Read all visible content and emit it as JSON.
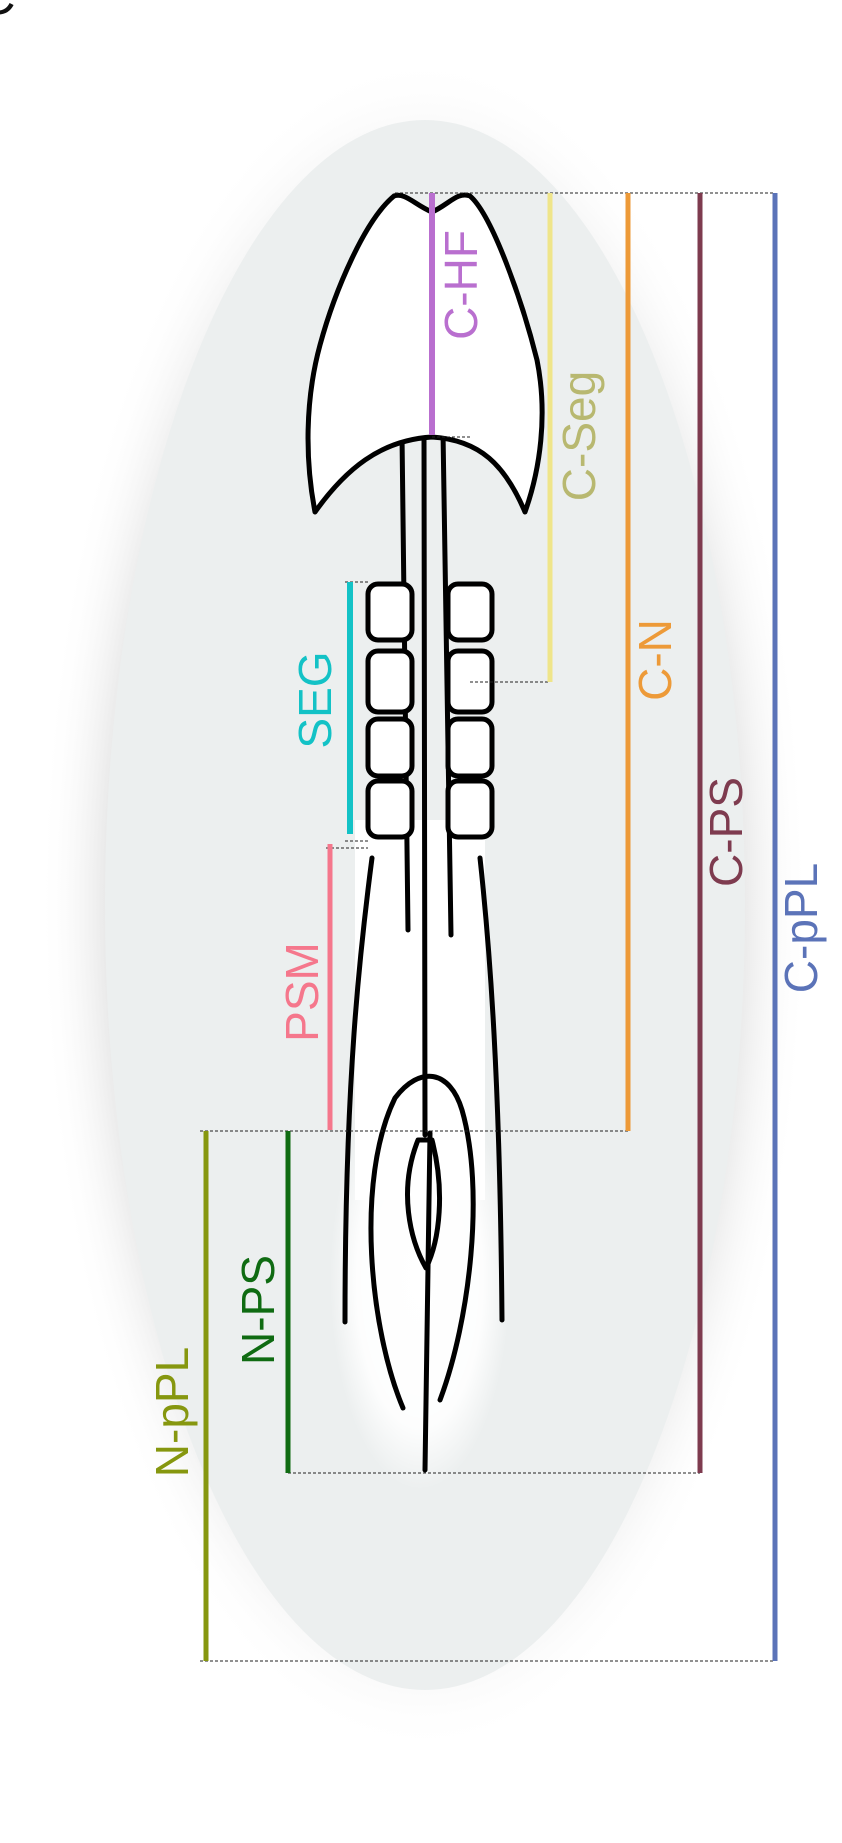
{
  "figure": {
    "corner_glyph": "C",
    "markers": [
      {
        "id": "c-hf",
        "label": "C-HF",
        "color": "#b96fcf"
      },
      {
        "id": "c-seg",
        "label": "C-Seg",
        "color": "#b8b870",
        "line_color": "#efe58a"
      },
      {
        "id": "c-n",
        "label": "C-N",
        "color": "#ed9a38"
      },
      {
        "id": "c-ps",
        "label": "C-PS",
        "color": "#7e3b4f"
      },
      {
        "id": "c-ppl",
        "label": "C-pPL",
        "color": "#5b73b8"
      },
      {
        "id": "seg",
        "label": "SEG",
        "color": "#13c2c6"
      },
      {
        "id": "psm",
        "label": "PSM",
        "color": "#f5778c"
      },
      {
        "id": "n-ps",
        "label": "N-PS",
        "color": "#0f6b12"
      },
      {
        "id": "n-ppl",
        "label": "N-pPL",
        "color": "#86970f"
      }
    ]
  }
}
